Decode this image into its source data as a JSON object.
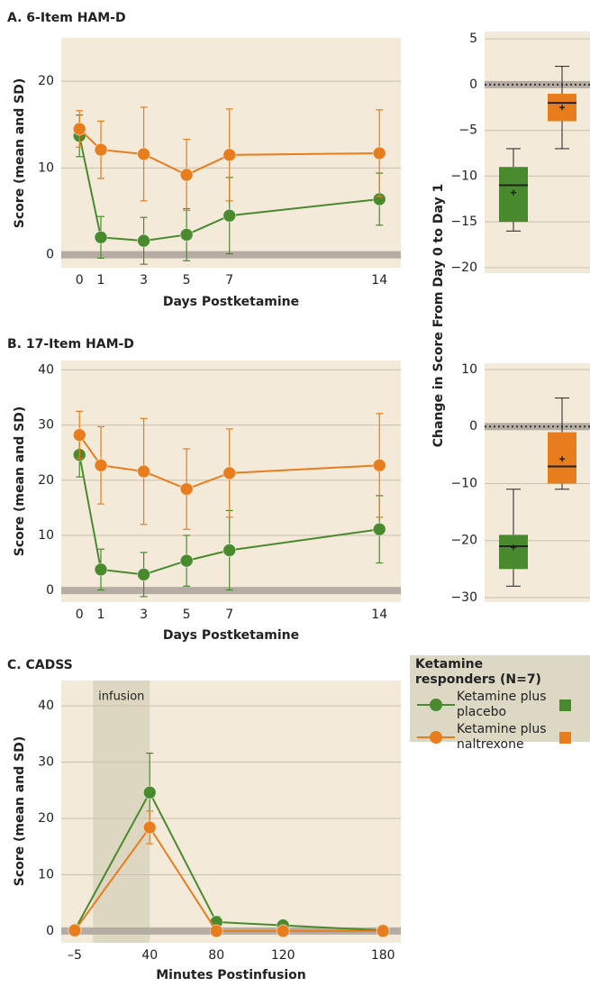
{
  "chart_data": [
    {
      "type": "line",
      "title": "A. 6-Item HAM-D",
      "xlabel": "Days Postketamine",
      "ylabel": "Score (mean and SD)",
      "x": [
        0,
        1,
        3,
        5,
        7,
        14
      ],
      "xlim": [
        -0.85,
        15
      ],
      "xticks": [
        0,
        1,
        3,
        5,
        7,
        14
      ],
      "ylim": [
        -1.5,
        25
      ],
      "yticks": [
        0,
        10,
        20
      ],
      "grid": true,
      "series": [
        {
          "name": "Ketamine plus placebo",
          "color": "#4a8a2e",
          "values": [
            13.7,
            2.0,
            1.6,
            2.3,
            4.5,
            6.4
          ],
          "errors": [
            2.4,
            2.4,
            2.7,
            3.0,
            4.4,
            3.0
          ]
        },
        {
          "name": "Ketamine plus naltrexone",
          "color": "#e87d1e",
          "values": [
            14.5,
            12.1,
            11.6,
            9.2,
            11.5,
            11.7
          ],
          "errors": [
            2.1,
            3.3,
            5.4,
            4.1,
            5.3,
            5.0
          ]
        }
      ]
    },
    {
      "type": "line",
      "title": "B. 17-Item HAM-D",
      "xlabel": "Days Postketamine",
      "ylabel": "Score (mean and SD)",
      "x": [
        0,
        1,
        3,
        5,
        7,
        14
      ],
      "xlim": [
        -0.85,
        15
      ],
      "xticks": [
        0,
        1,
        3,
        5,
        7,
        14
      ],
      "ylim": [
        -2.1,
        41.7
      ],
      "yticks": [
        0,
        10,
        20,
        30,
        40
      ],
      "grid": true,
      "series": [
        {
          "color": "#4a8a2e",
          "values": [
            24.6,
            3.8,
            2.9,
            5.4,
            7.3,
            11.1
          ],
          "errors": [
            4.0,
            3.7,
            4.0,
            4.6,
            7.2,
            6.1
          ]
        },
        {
          "color": "#e87d1e",
          "values": [
            28.2,
            22.7,
            21.6,
            18.4,
            21.3,
            22.7
          ],
          "errors": [
            4.3,
            7.0,
            9.6,
            7.3,
            8.0,
            9.4
          ]
        }
      ]
    },
    {
      "type": "box",
      "ylabel": "Change in Score From Day 0 to Day 1",
      "ylim": [
        -20.6,
        5.8
      ],
      "yticks": [
        5,
        0,
        {
          "value": -5,
          "label": "−5"
        },
        {
          "value": -10,
          "label": "−10"
        },
        {
          "value": -15,
          "label": "−15"
        },
        {
          "value": -20,
          "label": "−20"
        }
      ],
      "groups": [
        {
          "color": "#4a8a2e",
          "min": -16,
          "q1": -15,
          "median": -11,
          "q3": -9,
          "max": -7,
          "mean": -11.8
        },
        {
          "color": "#e87d1e",
          "min": -7,
          "q1": -4,
          "median": -2,
          "q3": -1,
          "max": 2,
          "mean": -2.5
        }
      ]
    },
    {
      "type": "box",
      "ylim": [
        -30.8,
        11.1
      ],
      "yticks": [
        10,
        0,
        {
          "value": -10,
          "label": "−10"
        },
        {
          "value": -20,
          "label": "−20"
        },
        {
          "value": -30,
          "label": "−30"
        }
      ],
      "groups": [
        {
          "color": "#4a8a2e",
          "min": -28,
          "q1": -25,
          "median": -21,
          "q3": -19,
          "max": -11,
          "mean": -21.2
        },
        {
          "color": "#e87d1e",
          "min": -11,
          "q1": -10,
          "median": -7,
          "q3": -1,
          "max": 5,
          "mean": -5.7
        }
      ]
    },
    {
      "type": "line",
      "title": "C. CADSS",
      "xlabel": "Minutes Postinfusion",
      "ylabel": "Score (mean and SD)",
      "x": [
        -5,
        40,
        80,
        120,
        180
      ],
      "xlim": [
        -13.1,
        190.7
      ],
      "xticks": [
        {
          "value": -5,
          "label": "–5"
        },
        40,
        80,
        120,
        180
      ],
      "ylim": [
        -2.1,
        44.5
      ],
      "yticks": [
        0,
        10,
        20,
        30,
        40
      ],
      "grid": true,
      "annotations": [
        {
          "text": "infusion",
          "x0": 6,
          "x1": 40
        }
      ],
      "series": [
        {
          "color": "#4a8a2e",
          "values": [
            0.2,
            24.6,
            1.6,
            1.0,
            0.1
          ],
          "errors": [
            0,
            7.0,
            1.0,
            0,
            0
          ]
        },
        {
          "color": "#e87d1e",
          "values": [
            0.1,
            18.4,
            0,
            0,
            0
          ],
          "errors": [
            0,
            2.9,
            0,
            0,
            0
          ]
        }
      ]
    }
  ],
  "legend": {
    "title": "Ketamine responders (N=7)"
  }
}
